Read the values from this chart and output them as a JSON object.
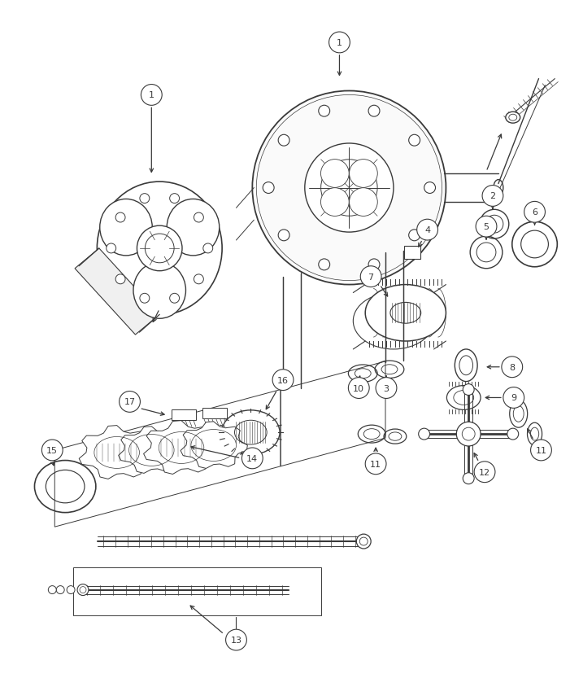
{
  "bg_color": "#ffffff",
  "lc": "#3a3a3a",
  "fig_width": 7.01,
  "fig_height": 8.45,
  "dpi": 100,
  "label_fontsize": 8.5,
  "label_circle_r": 0.016
}
